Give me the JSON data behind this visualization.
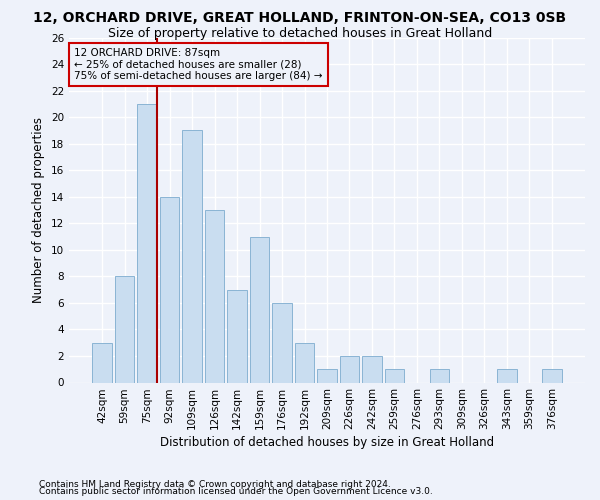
{
  "title": "12, ORCHARD DRIVE, GREAT HOLLAND, FRINTON-ON-SEA, CO13 0SB",
  "subtitle": "Size of property relative to detached houses in Great Holland",
  "xlabel": "Distribution of detached houses by size in Great Holland",
  "ylabel": "Number of detached properties",
  "categories": [
    "42sqm",
    "59sqm",
    "75sqm",
    "92sqm",
    "109sqm",
    "126sqm",
    "142sqm",
    "159sqm",
    "176sqm",
    "192sqm",
    "209sqm",
    "226sqm",
    "242sqm",
    "259sqm",
    "276sqm",
    "293sqm",
    "309sqm",
    "326sqm",
    "343sqm",
    "359sqm",
    "376sqm"
  ],
  "values": [
    3,
    8,
    21,
    14,
    19,
    13,
    7,
    11,
    6,
    3,
    1,
    2,
    2,
    1,
    0,
    1,
    0,
    0,
    1,
    0,
    1
  ],
  "bar_color": "#c9ddf0",
  "bar_edge_color": "#8ab4d4",
  "background_color": "#eef2fa",
  "grid_color": "#ffffff",
  "vline_color": "#aa0000",
  "vline_x_index": 2,
  "vline_x_offset": 0.43,
  "annotation_line1": "12 ORCHARD DRIVE: 87sqm",
  "annotation_line2": "← 25% of detached houses are smaller (28)",
  "annotation_line3": "75% of semi-detached houses are larger (84) →",
  "annotation_box_color": "#cc0000",
  "ylim": [
    0,
    26
  ],
  "yticks": [
    0,
    2,
    4,
    6,
    8,
    10,
    12,
    14,
    16,
    18,
    20,
    22,
    24,
    26
  ],
  "title_fontsize": 10,
  "subtitle_fontsize": 9,
  "axis_label_fontsize": 8.5,
  "tick_fontsize": 7.5,
  "annotation_fontsize": 7.5,
  "footer_fontsize": 6.5,
  "footer1": "Contains HM Land Registry data © Crown copyright and database right 2024.",
  "footer2": "Contains public sector information licensed under the Open Government Licence v3.0."
}
